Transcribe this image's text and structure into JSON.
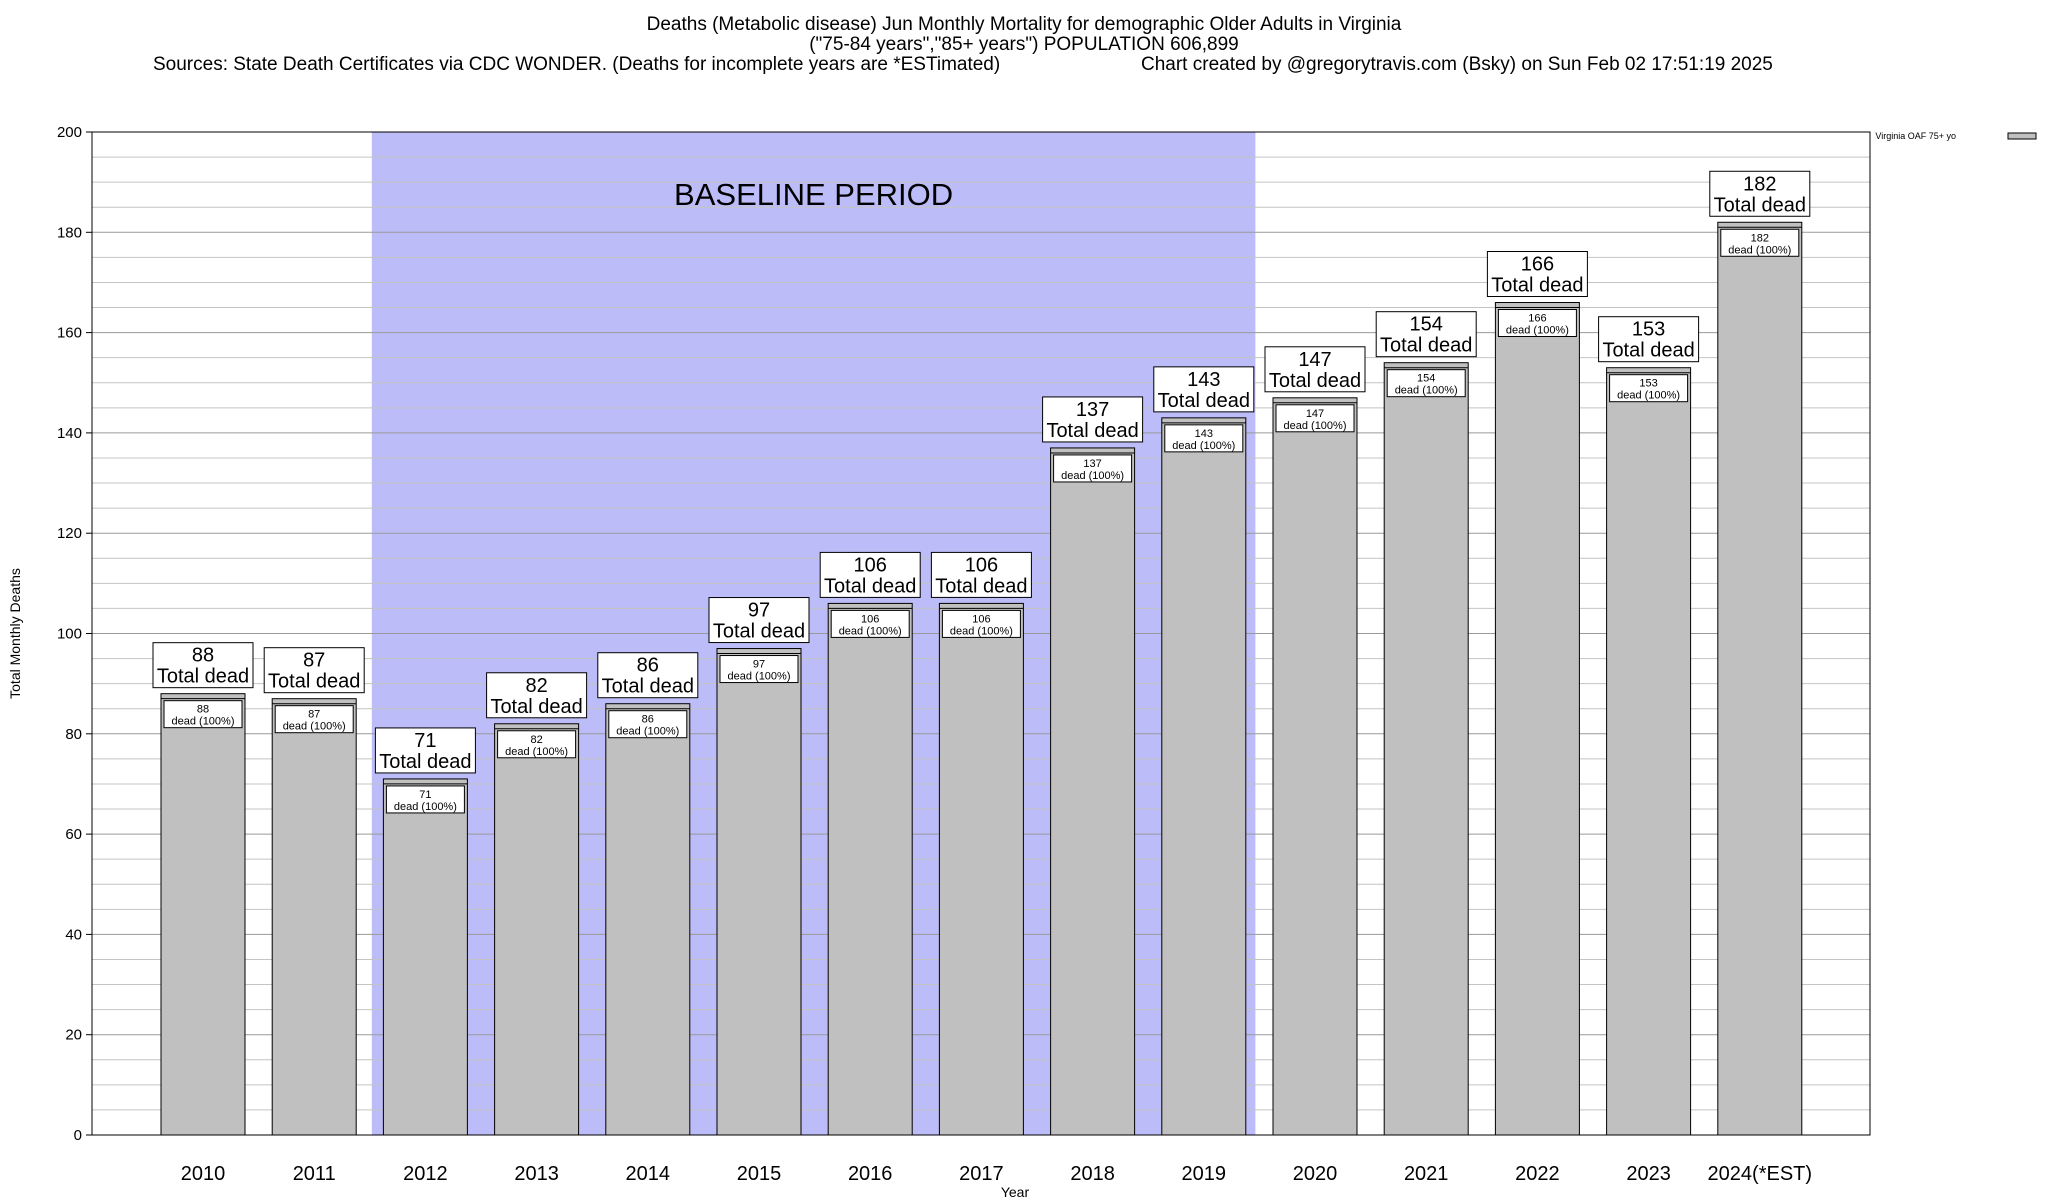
{
  "title": {
    "line1": "Deaths (Metabolic disease) Jun Monthly Mortality for demographic Older Adults in Virginia",
    "line2": "(\"75-84 years\",\"85+ years\") POPULATION 606,899",
    "line3": "Sources: State Death Certificates via CDC WONDER. (Deaths for incomplete years are *ESTimated)",
    "line4": "Chart created by @gregorytravis.com (Bsky) on Sun Feb 02 17:51:19 2025"
  },
  "chart_data": {
    "type": "bar",
    "categories": [
      "2010",
      "2011",
      "2012",
      "2013",
      "2014",
      "2015",
      "2016",
      "2017",
      "2018",
      "2019",
      "2020",
      "2021",
      "2022",
      "2023",
      "2024(*EST)"
    ],
    "series": [
      {
        "name": "Virginia OAF 75+ yo",
        "values": [
          88,
          87,
          71,
          82,
          86,
          97,
          106,
          106,
          137,
          143,
          147,
          154,
          166,
          153,
          182
        ]
      }
    ],
    "xlabel": "Year",
    "ylabel": "Total Monthly Deaths",
    "ylim": [
      0,
      200
    ],
    "yticks": [
      0,
      20,
      40,
      60,
      80,
      100,
      120,
      140,
      160,
      180,
      200
    ],
    "grid": true,
    "legend_position": "top-right",
    "top_label_suffix": "Total dead",
    "inner_label_suffix": "dead (100%)",
    "baseline": {
      "label": "BASELINE PERIOD",
      "start_category": "2012",
      "end_category": "2019",
      "color": "#bcbcf8"
    },
    "bar_color": "#c0c0c0"
  }
}
